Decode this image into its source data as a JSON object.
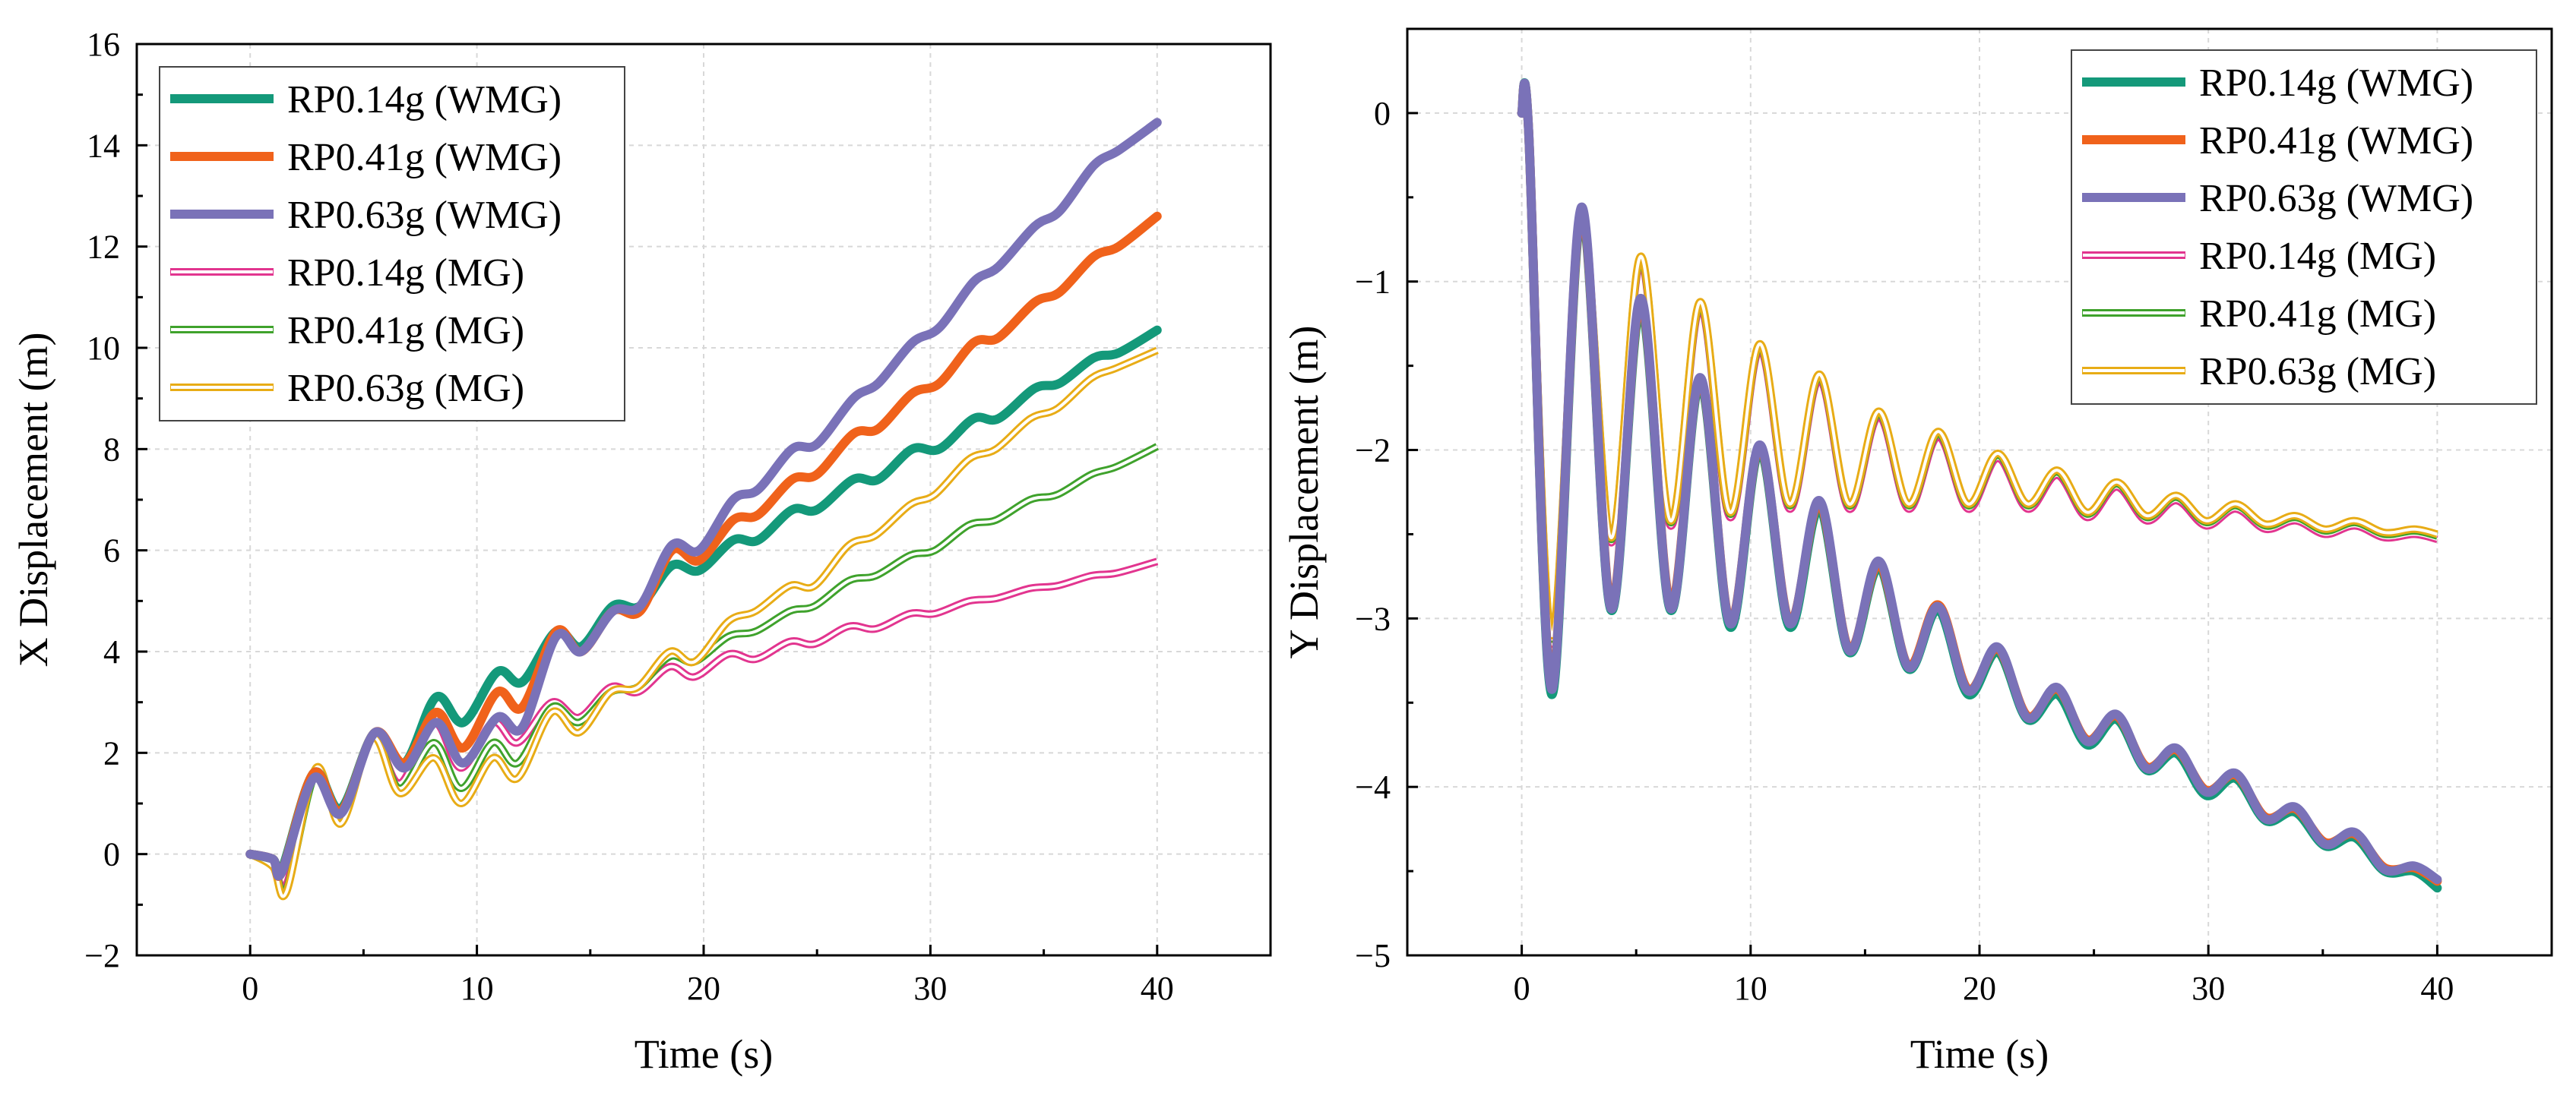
{
  "colors": {
    "rp014_wmg": "#14997a",
    "rp041_wmg": "#f0621b",
    "rp063_wmg": "#7a72b8",
    "rp014_mg": "#e2358f",
    "rp041_mg": "#3fa22c",
    "rp063_mg": "#e8ac16"
  },
  "chart_data": [
    {
      "type": "line",
      "xlabel": "Time (s)",
      "ylabel": "X Displacement (m)",
      "xlim": [
        -5,
        45
      ],
      "ylim": [
        -2,
        16
      ],
      "xticks": [
        "0",
        "10",
        "20",
        "30",
        "40"
      ],
      "yticks": [
        "−2",
        "0",
        "2",
        "4",
        "6",
        "8",
        "10",
        "12",
        "14",
        "16"
      ],
      "grid": true,
      "legend_position": "top-left",
      "series": [
        {
          "name": "RP0.14g (WMG)",
          "style": "thick",
          "color_key": "rp014_wmg",
          "x": [
            0,
            1,
            1.4,
            2.8,
            4,
            5.5,
            6.8,
            8.2,
            9.4,
            10.9,
            12,
            13.5,
            14.6,
            16,
            17.2,
            18.6,
            19.8,
            21.3,
            22.4,
            23.9,
            25,
            26.6,
            27.7,
            29.2,
            30.4,
            31.9,
            33,
            34.6,
            35.7,
            37.2,
            38.3,
            40
          ],
          "y": [
            0,
            -0.1,
            -0.3,
            1.6,
            0.9,
            2.4,
            1.8,
            3.1,
            2.6,
            3.6,
            3.4,
            4.4,
            4.1,
            4.9,
            4.9,
            5.7,
            5.6,
            6.2,
            6.2,
            6.8,
            6.8,
            7.4,
            7.4,
            8.0,
            8.0,
            8.6,
            8.6,
            9.2,
            9.3,
            9.8,
            9.9,
            10.35
          ]
        },
        {
          "name": "RP0.41g (WMG)",
          "style": "thick",
          "color_key": "rp041_wmg",
          "x": [
            0,
            1,
            1.4,
            2.8,
            4,
            5.5,
            6.8,
            8.2,
            9.4,
            10.9,
            12,
            13.5,
            14.6,
            16,
            17.2,
            18.6,
            19.8,
            21.3,
            22.4,
            23.9,
            25,
            26.6,
            27.7,
            29.2,
            30.4,
            31.9,
            33,
            34.6,
            35.7,
            37.2,
            38.3,
            40
          ],
          "y": [
            0,
            -0.1,
            -0.35,
            1.6,
            0.85,
            2.4,
            1.8,
            2.8,
            2.1,
            3.2,
            2.9,
            4.4,
            4.0,
            4.8,
            4.8,
            6.0,
            5.8,
            6.6,
            6.7,
            7.4,
            7.5,
            8.3,
            8.4,
            9.1,
            9.3,
            10.1,
            10.2,
            10.9,
            11.1,
            11.8,
            12.0,
            12.6
          ]
        },
        {
          "name": "RP0.63g (WMG)",
          "style": "thick",
          "color_key": "rp063_wmg",
          "x": [
            0,
            1,
            1.4,
            2.8,
            4,
            5.5,
            6.8,
            8.2,
            9.4,
            10.9,
            12,
            13.5,
            14.6,
            16,
            17.2,
            18.6,
            19.8,
            21.3,
            22.4,
            23.9,
            25,
            26.6,
            27.7,
            29.2,
            30.4,
            31.9,
            33,
            34.6,
            35.7,
            37.2,
            38.3,
            40
          ],
          "y": [
            0,
            -0.1,
            -0.35,
            1.5,
            0.8,
            2.4,
            1.7,
            2.6,
            1.8,
            2.7,
            2.5,
            4.3,
            4.0,
            4.8,
            4.9,
            6.1,
            6.0,
            7.0,
            7.2,
            8.0,
            8.1,
            9.0,
            9.3,
            10.1,
            10.4,
            11.3,
            11.6,
            12.4,
            12.7,
            13.6,
            13.9,
            14.45
          ]
        },
        {
          "name": "RP0.14g (MG)",
          "style": "thin",
          "color_key": "rp014_mg",
          "x": [
            0,
            1,
            1.6,
            2.9,
            4,
            5.4,
            6.6,
            8.1,
            9.3,
            10.7,
            11.8,
            13.3,
            14.5,
            15.9,
            17.1,
            18.5,
            19.6,
            21.1,
            22.3,
            23.8,
            24.9,
            26.4,
            27.6,
            29.1,
            30.2,
            31.7,
            32.9,
            34.4,
            35.6,
            37.1,
            38.2,
            40
          ],
          "y": [
            0,
            -0.2,
            -0.6,
            1.6,
            0.7,
            2.3,
            1.4,
            2.6,
            1.7,
            2.6,
            2.2,
            3.0,
            2.7,
            3.3,
            3.2,
            3.7,
            3.5,
            3.95,
            3.85,
            4.2,
            4.15,
            4.5,
            4.45,
            4.75,
            4.75,
            5.0,
            5.05,
            5.25,
            5.3,
            5.5,
            5.55,
            5.78
          ]
        },
        {
          "name": "RP0.41g (MG)",
          "style": "thin",
          "color_key": "rp041_mg",
          "x": [
            0,
            1,
            1.6,
            2.9,
            4,
            5.4,
            6.6,
            8.1,
            9.3,
            10.7,
            11.8,
            13.3,
            14.5,
            15.9,
            17.1,
            18.5,
            19.6,
            21.1,
            22.3,
            23.8,
            24.9,
            26.4,
            27.6,
            29.1,
            30.2,
            31.7,
            32.9,
            34.4,
            35.6,
            37.1,
            38.2,
            40
          ],
          "y": [
            0,
            -0.2,
            -0.7,
            1.6,
            0.65,
            2.3,
            1.3,
            2.2,
            1.3,
            2.2,
            1.8,
            2.9,
            2.6,
            3.2,
            3.3,
            3.9,
            3.8,
            4.3,
            4.4,
            4.8,
            4.9,
            5.4,
            5.5,
            5.9,
            6.0,
            6.5,
            6.6,
            7.0,
            7.1,
            7.5,
            7.65,
            8.05
          ]
        },
        {
          "name": "RP0.63g (MG)",
          "style": "thin",
          "color_key": "rp063_mg",
          "x": [
            0,
            1,
            1.6,
            2.9,
            4,
            5.4,
            6.6,
            8.1,
            9.3,
            10.7,
            11.8,
            13.3,
            14.5,
            15.9,
            17.1,
            18.5,
            19.6,
            21.1,
            22.3,
            23.8,
            24.9,
            26.4,
            27.6,
            29.1,
            30.2,
            31.7,
            32.9,
            34.4,
            35.6,
            37.1,
            38.2,
            40
          ],
          "y": [
            0,
            -0.25,
            -0.75,
            1.7,
            0.6,
            2.3,
            1.2,
            1.9,
            1.0,
            1.9,
            1.5,
            2.8,
            2.4,
            3.2,
            3.3,
            4.0,
            3.8,
            4.6,
            4.8,
            5.3,
            5.3,
            6.1,
            6.3,
            6.9,
            7.1,
            7.8,
            8.0,
            8.6,
            8.8,
            9.4,
            9.6,
            9.95
          ]
        }
      ]
    },
    {
      "type": "line",
      "xlabel": "Time (s)",
      "ylabel": "Y Displacement (m)",
      "xlim": [
        -5,
        45
      ],
      "ylim": [
        -5,
        0.5
      ],
      "xticks": [
        "0",
        "10",
        "20",
        "30",
        "40"
      ],
      "yticks": [
        "0",
        "−1",
        "−2",
        "−3",
        "−4",
        "−5"
      ],
      "grid": true,
      "legend_position": "top-right",
      "series": [
        {
          "name": "RP0.14g (WMG)",
          "style": "thick",
          "color_key": "rp014_wmg",
          "x": [
            0,
            0.3,
            1.3,
            2.6,
            3.9,
            5.2,
            6.5,
            7.8,
            9.1,
            10.4,
            11.7,
            13.0,
            14.3,
            15.6,
            16.9,
            18.2,
            19.5,
            20.8,
            22.1,
            23.4,
            24.7,
            26.0,
            27.3,
            28.6,
            29.9,
            31.2,
            32.5,
            33.8,
            35.1,
            36.4,
            37.7,
            39,
            40
          ],
          "y": [
            0,
            -0.1,
            -3.45,
            -0.6,
            -2.95,
            -1.15,
            -2.95,
            -1.6,
            -3.05,
            -2.0,
            -3.05,
            -2.35,
            -3.2,
            -2.7,
            -3.3,
            -2.95,
            -3.45,
            -3.2,
            -3.6,
            -3.45,
            -3.75,
            -3.6,
            -3.9,
            -3.8,
            -4.05,
            -3.95,
            -4.2,
            -4.15,
            -4.35,
            -4.3,
            -4.5,
            -4.5,
            -4.6
          ]
        },
        {
          "name": "RP0.41g (WMG)",
          "style": "thick",
          "color_key": "rp041_wmg",
          "x": [
            0,
            0.3,
            1.3,
            2.6,
            3.9,
            5.2,
            6.5,
            7.8,
            9.1,
            10.4,
            11.7,
            13.0,
            14.3,
            15.6,
            16.9,
            18.2,
            19.5,
            20.8,
            22.1,
            23.4,
            24.7,
            26.0,
            27.3,
            28.6,
            29.9,
            31.2,
            32.5,
            33.8,
            35.1,
            36.4,
            37.7,
            39,
            40
          ],
          "y": [
            0,
            -0.1,
            -3.4,
            -0.58,
            -2.92,
            -1.12,
            -2.92,
            -1.58,
            -3.02,
            -1.98,
            -3.02,
            -2.32,
            -3.18,
            -2.68,
            -3.28,
            -2.92,
            -3.42,
            -3.18,
            -3.58,
            -3.42,
            -3.72,
            -3.58,
            -3.88,
            -3.78,
            -4.02,
            -3.93,
            -4.18,
            -4.13,
            -4.33,
            -4.28,
            -4.48,
            -4.48,
            -4.56
          ]
        },
        {
          "name": "RP0.63g (WMG)",
          "style": "thick",
          "color_key": "rp063_wmg",
          "x": [
            0,
            0.3,
            1.3,
            2.6,
            3.9,
            5.2,
            6.5,
            7.8,
            9.1,
            10.4,
            11.7,
            13.0,
            14.3,
            15.6,
            16.9,
            18.2,
            19.5,
            20.8,
            22.1,
            23.4,
            24.7,
            26.0,
            27.3,
            28.6,
            29.9,
            31.2,
            32.5,
            33.8,
            35.1,
            36.4,
            37.7,
            39,
            40
          ],
          "y": [
            0,
            -0.1,
            -3.42,
            -0.56,
            -2.94,
            -1.1,
            -2.94,
            -1.57,
            -3.03,
            -1.97,
            -3.03,
            -2.3,
            -3.19,
            -2.66,
            -3.29,
            -2.93,
            -3.43,
            -3.17,
            -3.59,
            -3.41,
            -3.73,
            -3.57,
            -3.89,
            -3.77,
            -4.03,
            -3.92,
            -4.19,
            -4.12,
            -4.34,
            -4.27,
            -4.49,
            -4.47,
            -4.55
          ]
        },
        {
          "name": "RP0.14g (MG)",
          "style": "thin",
          "color_key": "rp014_mg",
          "x": [
            0,
            0.3,
            1.3,
            2.6,
            3.9,
            5.2,
            6.5,
            7.8,
            9.1,
            10.4,
            11.7,
            13.0,
            14.3,
            15.6,
            16.9,
            18.2,
            19.5,
            20.8,
            22.1,
            23.4,
            24.7,
            26.0,
            27.3,
            28.6,
            29.9,
            31.2,
            32.5,
            33.8,
            35.1,
            36.4,
            37.7,
            39,
            40
          ],
          "y": [
            0,
            -0.1,
            -3.15,
            -0.65,
            -2.55,
            -0.88,
            -2.45,
            -1.15,
            -2.4,
            -1.4,
            -2.35,
            -1.58,
            -2.35,
            -1.8,
            -2.35,
            -1.92,
            -2.35,
            -2.05,
            -2.35,
            -2.15,
            -2.4,
            -2.22,
            -2.42,
            -2.3,
            -2.45,
            -2.35,
            -2.47,
            -2.42,
            -2.5,
            -2.45,
            -2.52,
            -2.5,
            -2.53
          ]
        },
        {
          "name": "RP0.41g (MG)",
          "style": "thin",
          "color_key": "rp041_mg",
          "x": [
            0,
            0.3,
            1.3,
            2.6,
            3.9,
            5.2,
            6.5,
            7.8,
            9.1,
            10.4,
            11.7,
            13.0,
            14.3,
            15.6,
            16.9,
            18.2,
            19.5,
            20.8,
            22.1,
            23.4,
            24.7,
            26.0,
            27.3,
            28.6,
            29.9,
            31.2,
            32.5,
            33.8,
            35.1,
            36.4,
            37.7,
            39,
            40
          ],
          "y": [
            0,
            -0.1,
            -3.12,
            -0.63,
            -2.53,
            -0.86,
            -2.43,
            -1.13,
            -2.38,
            -1.38,
            -2.33,
            -1.56,
            -2.33,
            -1.78,
            -2.33,
            -1.9,
            -2.33,
            -2.03,
            -2.33,
            -2.13,
            -2.38,
            -2.2,
            -2.4,
            -2.28,
            -2.43,
            -2.33,
            -2.45,
            -2.4,
            -2.48,
            -2.43,
            -2.5,
            -2.48,
            -2.51
          ]
        },
        {
          "name": "RP0.63g (MG)",
          "style": "thin",
          "color_key": "rp063_mg",
          "x": [
            0,
            0.3,
            1.3,
            2.6,
            3.9,
            5.2,
            6.5,
            7.8,
            9.1,
            10.4,
            11.7,
            13.0,
            14.3,
            15.6,
            16.9,
            18.2,
            19.5,
            20.8,
            22.1,
            23.4,
            24.7,
            26.0,
            27.3,
            28.6,
            29.9,
            31.2,
            32.5,
            33.8,
            35.1,
            36.4,
            37.7,
            39,
            40
          ],
          "y": [
            0,
            -0.1,
            -3.1,
            -0.62,
            -2.52,
            -0.85,
            -2.42,
            -1.12,
            -2.37,
            -1.37,
            -2.32,
            -1.55,
            -2.32,
            -1.77,
            -2.32,
            -1.89,
            -2.32,
            -2.02,
            -2.32,
            -2.12,
            -2.37,
            -2.19,
            -2.39,
            -2.27,
            -2.42,
            -2.32,
            -2.44,
            -2.39,
            -2.47,
            -2.42,
            -2.49,
            -2.47,
            -2.5
          ]
        }
      ]
    }
  ]
}
